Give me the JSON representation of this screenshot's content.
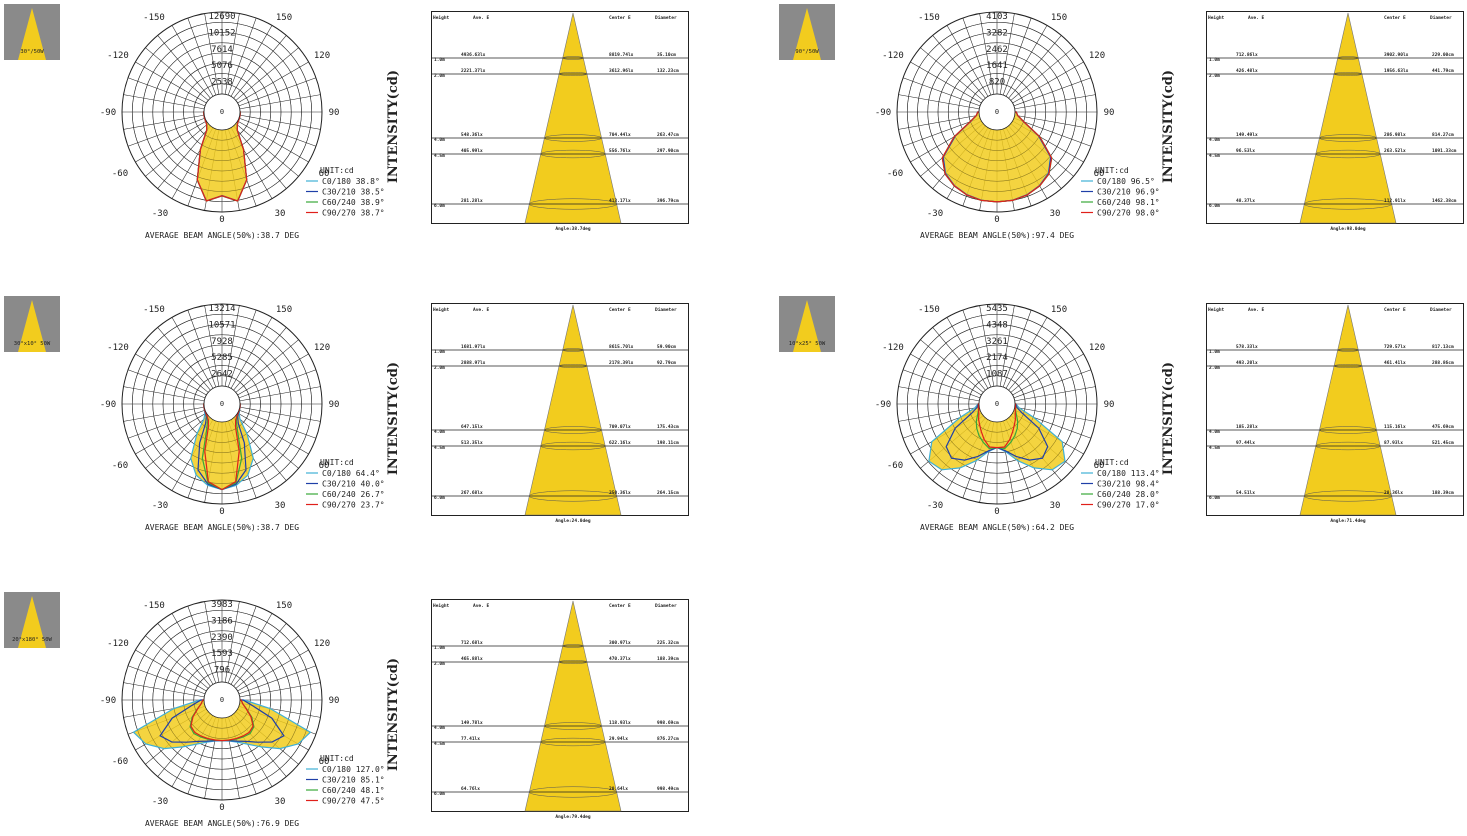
{
  "colors": {
    "c0": "#3fb0d6",
    "c30": "#1f3fa8",
    "c60": "#3aa83a",
    "c90": "#e0201a",
    "fill": "#f2cc1e",
    "grid": "#222222"
  },
  "intensity_label": "INTENSITY(cd)",
  "unit_label": "UNIT:cd",
  "polar_angle_labels": {
    "top_left": "-150",
    "top_right": "150",
    "upper_left": "-120",
    "upper_right": "120",
    "mid_left": "-90",
    "mid_right": "90",
    "low_left": "-60",
    "low_right": "60",
    "bottom_left": "-30",
    "bottom_right": "30",
    "bottom": "0",
    "center": "0"
  },
  "panels": [
    {
      "thumb_label": "30°/50W",
      "rings": [
        "12690",
        "10152",
        "7614",
        "5076",
        "2538"
      ],
      "legend": [
        "C0/180 38.8°",
        "C30/210 38.5°",
        "C60/240 38.9°",
        "C90/270 38.7°"
      ],
      "beam_angle": "AVERAGE BEAM ANGLE(50%):38.7 DEG",
      "cone": {
        "headers": [
          "Height",
          "Ave. E",
          "Center E",
          "Diameter"
        ],
        "rows": [
          [
            "1.0m",
            "4936.63lx",
            "8819.74lx",
            "35.10cm"
          ],
          [
            "2.0m",
            "2221.37lx",
            "3612.96lx",
            "132.23cm"
          ],
          [
            "4.0m",
            "548.36lx",
            "704.44lx",
            "263.47cm"
          ],
          [
            "4.5m",
            "405.99lx",
            "556.76lx",
            "297.90cm"
          ],
          [
            "6.0m",
            "281.28lx",
            "413.17lx",
            "396.79cm"
          ]
        ],
        "angle": "Angle:38.7deg"
      },
      "chart_data": {
        "type": "polar",
        "max": 12690,
        "angles": [
          0,
          10,
          20,
          30,
          40,
          50,
          60,
          70,
          80,
          90
        ],
        "series": [
          {
            "name": "C0/180 38.8°",
            "values": [
              10200,
              11200,
              8400,
              3900,
              900,
              300,
              120,
              80,
              60,
              40
            ]
          },
          {
            "name": "C30/210 38.5°",
            "values": [
              10150,
              11180,
              8380,
              3880,
              880,
              300,
              120,
              80,
              60,
              40
            ]
          },
          {
            "name": "C60/240 38.9°",
            "values": [
              10200,
              11220,
              8420,
              3920,
              900,
              300,
              120,
              80,
              60,
              40
            ]
          },
          {
            "name": "C90/270 38.7°",
            "values": [
              10180,
              11200,
              8400,
              3890,
              890,
              300,
              120,
              80,
              60,
              40
            ]
          }
        ]
      }
    },
    {
      "thumb_label": "90°/50W",
      "rings": [
        "4103",
        "3282",
        "2462",
        "1641",
        "820"
      ],
      "legend": [
        "C0/180 96.5°",
        "C30/210 96.9°",
        "C60/240 98.1°",
        "C90/270 98.0°"
      ],
      "beam_angle": "AVERAGE BEAM ANGLE(50%):97.4 DEG",
      "cone": {
        "headers": [
          "Height",
          "Ave. E",
          "Center E",
          "Diameter"
        ],
        "rows": [
          [
            "1.0m",
            "712.86lx",
            "3902.90lx",
            "229.00cm"
          ],
          [
            "2.0m",
            "426.48lx",
            "1956.63lx",
            "441.79cm"
          ],
          [
            "4.0m",
            "149.49lx",
            "286.98lx",
            "814.27cm"
          ],
          [
            "4.5m",
            "96.53lx",
            "263.52lx",
            "1091.33cm"
          ],
          [
            "6.0m",
            "48.37lx",
            "112.91lx",
            "1462.38cm"
          ]
        ],
        "angle": "Angle:98.0deg"
      },
      "chart_data": {
        "type": "polar",
        "max": 4103,
        "angles": [
          0,
          10,
          20,
          30,
          40,
          50,
          60,
          70,
          80,
          90
        ],
        "series": [
          {
            "name": "C0/180 96.5°",
            "values": [
              3600,
              3580,
              3500,
              3350,
              3100,
              2600,
              1500,
              500,
              150,
              60
            ]
          },
          {
            "name": "C30/210 96.9°",
            "values": [
              3600,
              3585,
              3510,
              3360,
              3120,
              2620,
              1520,
              520,
              150,
              60
            ]
          },
          {
            "name": "C60/240 98.1°",
            "values": [
              3600,
              3590,
              3520,
              3380,
              3150,
              2680,
              1580,
              540,
              160,
              60
            ]
          },
          {
            "name": "C90/270 98.0°",
            "values": [
              3600,
              3590,
              3520,
              3370,
              3140,
              2670,
              1570,
              530,
              160,
              60
            ]
          }
        ]
      }
    },
    {
      "thumb_label": "30°x10° 50W",
      "rings": [
        "13214",
        "10571",
        "7928",
        "5285",
        "2642"
      ],
      "legend": [
        "C0/180 64.4°",
        "C30/210 40.0°",
        "C60/240 26.7°",
        "C90/270 23.7°"
      ],
      "beam_angle": "AVERAGE BEAM ANGLE(50%):38.7 DEG",
      "cone": {
        "headers": [
          "Height",
          "Ave. E",
          "Center E",
          "Diameter"
        ],
        "rows": [
          [
            "1.0m",
            "1681.97lx",
            "8615.70lx",
            "59.90cm"
          ],
          [
            "2.0m",
            "2888.97lx",
            "2178.39lx",
            "92.79cm"
          ],
          [
            "4.0m",
            "647.15lx",
            "709.07lx",
            "175.43cm"
          ],
          [
            "4.5m",
            "513.35lx",
            "622.16lx",
            "198.11cm"
          ],
          [
            "6.0m",
            "267.68lx",
            "350.36lx",
            "264.15cm"
          ]
        ],
        "angle": "Angle:24.0deg"
      },
      "chart_data": {
        "type": "polar",
        "max": 13214,
        "angles": [
          0,
          10,
          20,
          30,
          40,
          50,
          60,
          70,
          80,
          90
        ],
        "series": [
          {
            "name": "C0/180 64.4°",
            "values": [
              10900,
              10400,
              9300,
              7200,
              3400,
              900,
              300,
              100,
              60,
              40
            ]
          },
          {
            "name": "C30/210 40.0°",
            "values": [
              10900,
              10200,
              8400,
              4300,
              1200,
              400,
              150,
              80,
              60,
              40
            ]
          },
          {
            "name": "C60/240 26.7°",
            "values": [
              10900,
              10000,
              6400,
              2100,
              700,
              250,
              100,
              70,
              50,
              40
            ]
          },
          {
            "name": "C90/270 23.7°",
            "values": [
              10900,
              9800,
              5200,
              1500,
              500,
              200,
              100,
              60,
              50,
              40
            ]
          }
        ]
      }
    },
    {
      "thumb_label": "10°x25° 50W",
      "rings": [
        "5435",
        "4348",
        "3261",
        "2174",
        "1087"
      ],
      "legend": [
        "C0/180 113.4°",
        "C30/210 98.4°",
        "C60/240 28.0°",
        "C90/270 17.0°"
      ],
      "beam_angle": "AVERAGE BEAM ANGLE(50%):64.2 DEG",
      "cone": {
        "headers": [
          "Height",
          "Ave. E",
          "Center E",
          "Diameter"
        ],
        "rows": [
          [
            "1.0m",
            "578.33lx",
            "729.57lx",
            "817.13cm"
          ],
          [
            "2.0m",
            "493.20lx",
            "461.41lx",
            "288.86cm"
          ],
          [
            "4.0m",
            "185.28lx",
            "115.16lx",
            "475.69cm"
          ],
          [
            "4.5m",
            "97.44lx",
            "87.93lx",
            "521.45cm"
          ],
          [
            "6.0m",
            "54.51lx",
            "28.36lx",
            "188.39cm"
          ]
        ],
        "angle": "Angle:71.4deg"
      },
      "chart_data": {
        "type": "polar",
        "max": 5435,
        "angles": [
          0,
          10,
          20,
          30,
          40,
          50,
          60,
          70,
          80,
          90
        ],
        "series": [
          {
            "name": "C0/180 113.4°",
            "values": [
              1700,
              2000,
              2800,
              3700,
              4500,
              4700,
              3800,
              1400,
              300,
              60
            ]
          },
          {
            "name": "C30/210 98.4°",
            "values": [
              1700,
              1950,
              2500,
              3100,
              3500,
              3200,
              2000,
              600,
              150,
              60
            ]
          },
          {
            "name": "C60/240 28.0°",
            "values": [
              1700,
              1800,
              1500,
              1200,
              900,
              600,
              300,
              120,
              60,
              40
            ]
          },
          {
            "name": "C90/270 17.0°",
            "values": [
              1700,
              1700,
              1300,
              900,
              600,
              400,
              200,
              100,
              60,
              40
            ]
          }
        ]
      }
    },
    {
      "thumb_label": "20°x180° 50W",
      "rings": [
        "3983",
        "3186",
        "2390",
        "1593",
        "796"
      ],
      "legend": [
        "C0/180 127.0°",
        "C30/210 85.1°",
        "C60/240 48.1°",
        "C90/270 47.5°"
      ],
      "beam_angle": "AVERAGE BEAM ANGLE(50%):76.9 DEG",
      "cone": {
        "headers": [
          "Height",
          "Ave. E",
          "Center E",
          "Diameter"
        ],
        "rows": [
          [
            "1.0m",
            "712.68lx",
            "300.97lx",
            "225.32cm"
          ],
          [
            "2.0m",
            "465.88lx",
            "470.37lx",
            "188.39cm"
          ],
          [
            "4.0m",
            "149.78lx",
            "118.93lx",
            "998.69cm"
          ],
          [
            "4.5m",
            "77.41lx",
            "29.94lx",
            "876.27cm"
          ],
          [
            "6.0m",
            "64.76lx",
            "20.64lx",
            "998.49cm"
          ]
        ],
        "angle": "Angle:79.4deg"
      },
      "chart_data": {
        "type": "polar",
        "max": 3983,
        "angles": [
          0,
          10,
          20,
          30,
          40,
          50,
          60,
          70,
          80,
          90
        ],
        "series": [
          {
            "name": "C0/180 127.0°",
            "values": [
              1100,
              1150,
              1300,
              1600,
              2100,
              2800,
              3400,
              3700,
              1500,
              200
            ]
          },
          {
            "name": "C30/210 85.1°",
            "values": [
              1100,
              1130,
              1250,
              1450,
              1800,
              2300,
              2600,
              1700,
              600,
              150
            ]
          },
          {
            "name": "C60/240 48.1°",
            "values": [
              1100,
              1110,
              1150,
              1200,
              1250,
              1150,
              800,
              400,
              150,
              60
            ]
          },
          {
            "name": "C90/270 47.5°",
            "values": [
              1100,
              1100,
              1120,
              1150,
              1180,
              1100,
              750,
              380,
              150,
              60
            ]
          }
        ]
      }
    }
  ]
}
